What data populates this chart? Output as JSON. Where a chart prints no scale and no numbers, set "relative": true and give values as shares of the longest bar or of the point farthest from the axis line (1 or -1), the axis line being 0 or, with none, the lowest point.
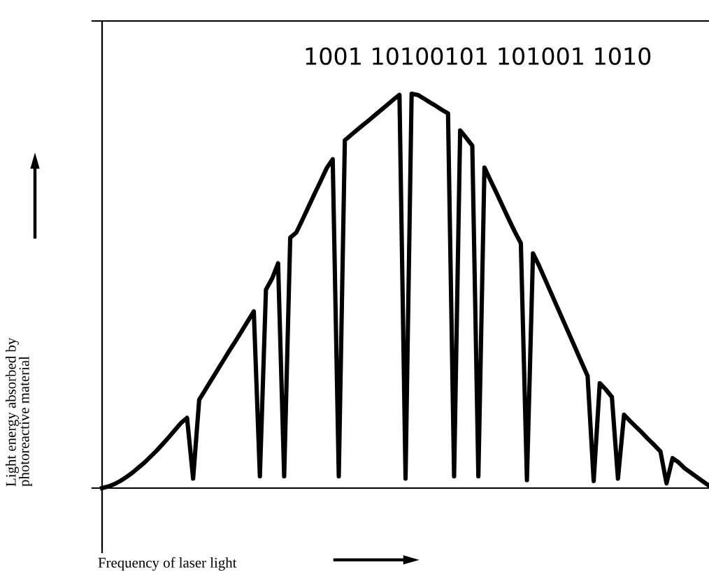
{
  "chart_data": {
    "type": "line",
    "relative": true,
    "xlabel": "Frequency of laser light",
    "ylabel": "Light energy absorbed by\nphotoreactive material",
    "annotations": [
      "1001 10100101 101001 1010"
    ],
    "categories": [
      null,
      null,
      null,
      null,
      null,
      null,
      null,
      null,
      null,
      null,
      null,
      null,
      null,
      null,
      null,
      null,
      null,
      null,
      null,
      null,
      null,
      null,
      null,
      null,
      null,
      null,
      null,
      null,
      null,
      null,
      null,
      null,
      null,
      null,
      null,
      null,
      null,
      null,
      null,
      null,
      null,
      null,
      null,
      null,
      null,
      null,
      null,
      null,
      null,
      null,
      null,
      null,
      null,
      null,
      null,
      null,
      null,
      null,
      null,
      null,
      null,
      null,
      null,
      null,
      null,
      null,
      null,
      null,
      null,
      null,
      null,
      null,
      null,
      null,
      null,
      null,
      null,
      null,
      null,
      null,
      null,
      null,
      null,
      null,
      null,
      null,
      null,
      null,
      null,
      null,
      null,
      null,
      null,
      null,
      null,
      null,
      null,
      null,
      null,
      null,
      null
    ],
    "legend": false,
    "marker": "none",
    "line_style": "solid",
    "series": [
      {
        "color": "#000000",
        "values": [
          0,
          0.004,
          0.01,
          0.018,
          0.028,
          0.039,
          0.052,
          0.065,
          0.08,
          0.095,
          0.112,
          0.129,
          0.147,
          0.165,
          0.178,
          0.024,
          0.224,
          0.249,
          0.274,
          0.299,
          0.324,
          0.349,
          0.373,
          0.398,
          0.423,
          0.448,
          0.03,
          0.503,
          0.531,
          0.57,
          0.03,
          0.635,
          0.648,
          0.68,
          0.713,
          0.746,
          0.778,
          0.811,
          0.834,
          0.03,
          0.882,
          0.895,
          0.908,
          0.921,
          0.933,
          0.946,
          0.959,
          0.972,
          0.985,
          0.997,
          0.024,
          1.0,
          0.997,
          0.988,
          0.978,
          0.969,
          0.959,
          0.95,
          0.03,
          0.907,
          0.888,
          0.868,
          0.03,
          0.813,
          0.78,
          0.748,
          0.715,
          0.682,
          0.65,
          0.621,
          0.02,
          0.595,
          0.564,
          0.529,
          0.494,
          0.459,
          0.424,
          0.389,
          0.354,
          0.319,
          0.284,
          0.018,
          0.266,
          0.25,
          0.231,
          0.024,
          0.186,
          0.17,
          0.155,
          0.14,
          0.124,
          0.109,
          0.093,
          0.012,
          0.076,
          0.065,
          0.05,
          0.039,
          0.028,
          0.017,
          0.006
        ]
      }
    ]
  }
}
